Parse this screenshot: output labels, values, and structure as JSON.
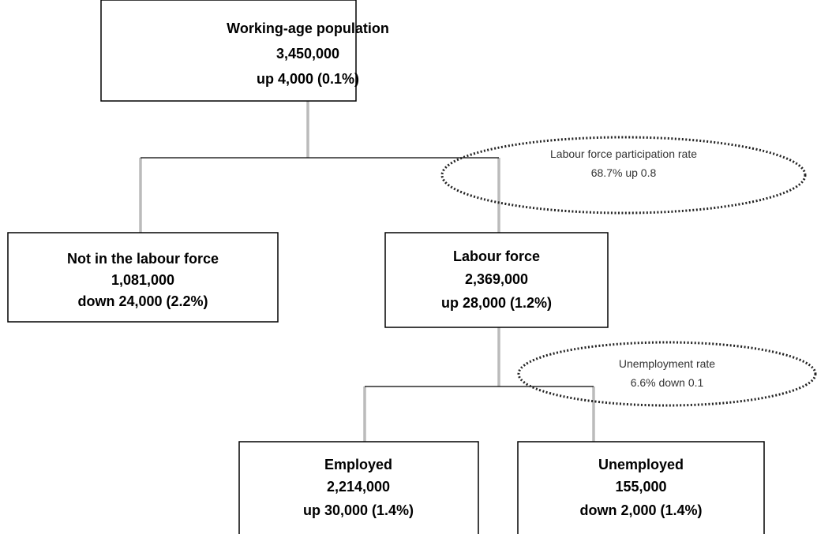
{
  "nodes": [
    {
      "title": "Working-age population",
      "value": "3,450,000",
      "change": "up 4,000 (0.1%)"
    },
    {
      "title": "Not in the labour force",
      "value": "1,081,000",
      "change": "down 24,000 (2.2%)"
    },
    {
      "title": "Labour force",
      "value": "2,369,000",
      "change": "up 28,000 (1.2%)"
    },
    {
      "title": "Employed",
      "value": "2,214,000",
      "change": "up 30,000 (1.4%)"
    },
    {
      "title": "Unemployed",
      "value": "155,000",
      "change": "down 2,000 (1.4%)"
    }
  ],
  "annotations": [
    {
      "label": "Labour force participation rate",
      "value": "68.7% up 0.8"
    },
    {
      "label": "Unemployment rate",
      "value": "6.6% down 0.1"
    }
  ]
}
